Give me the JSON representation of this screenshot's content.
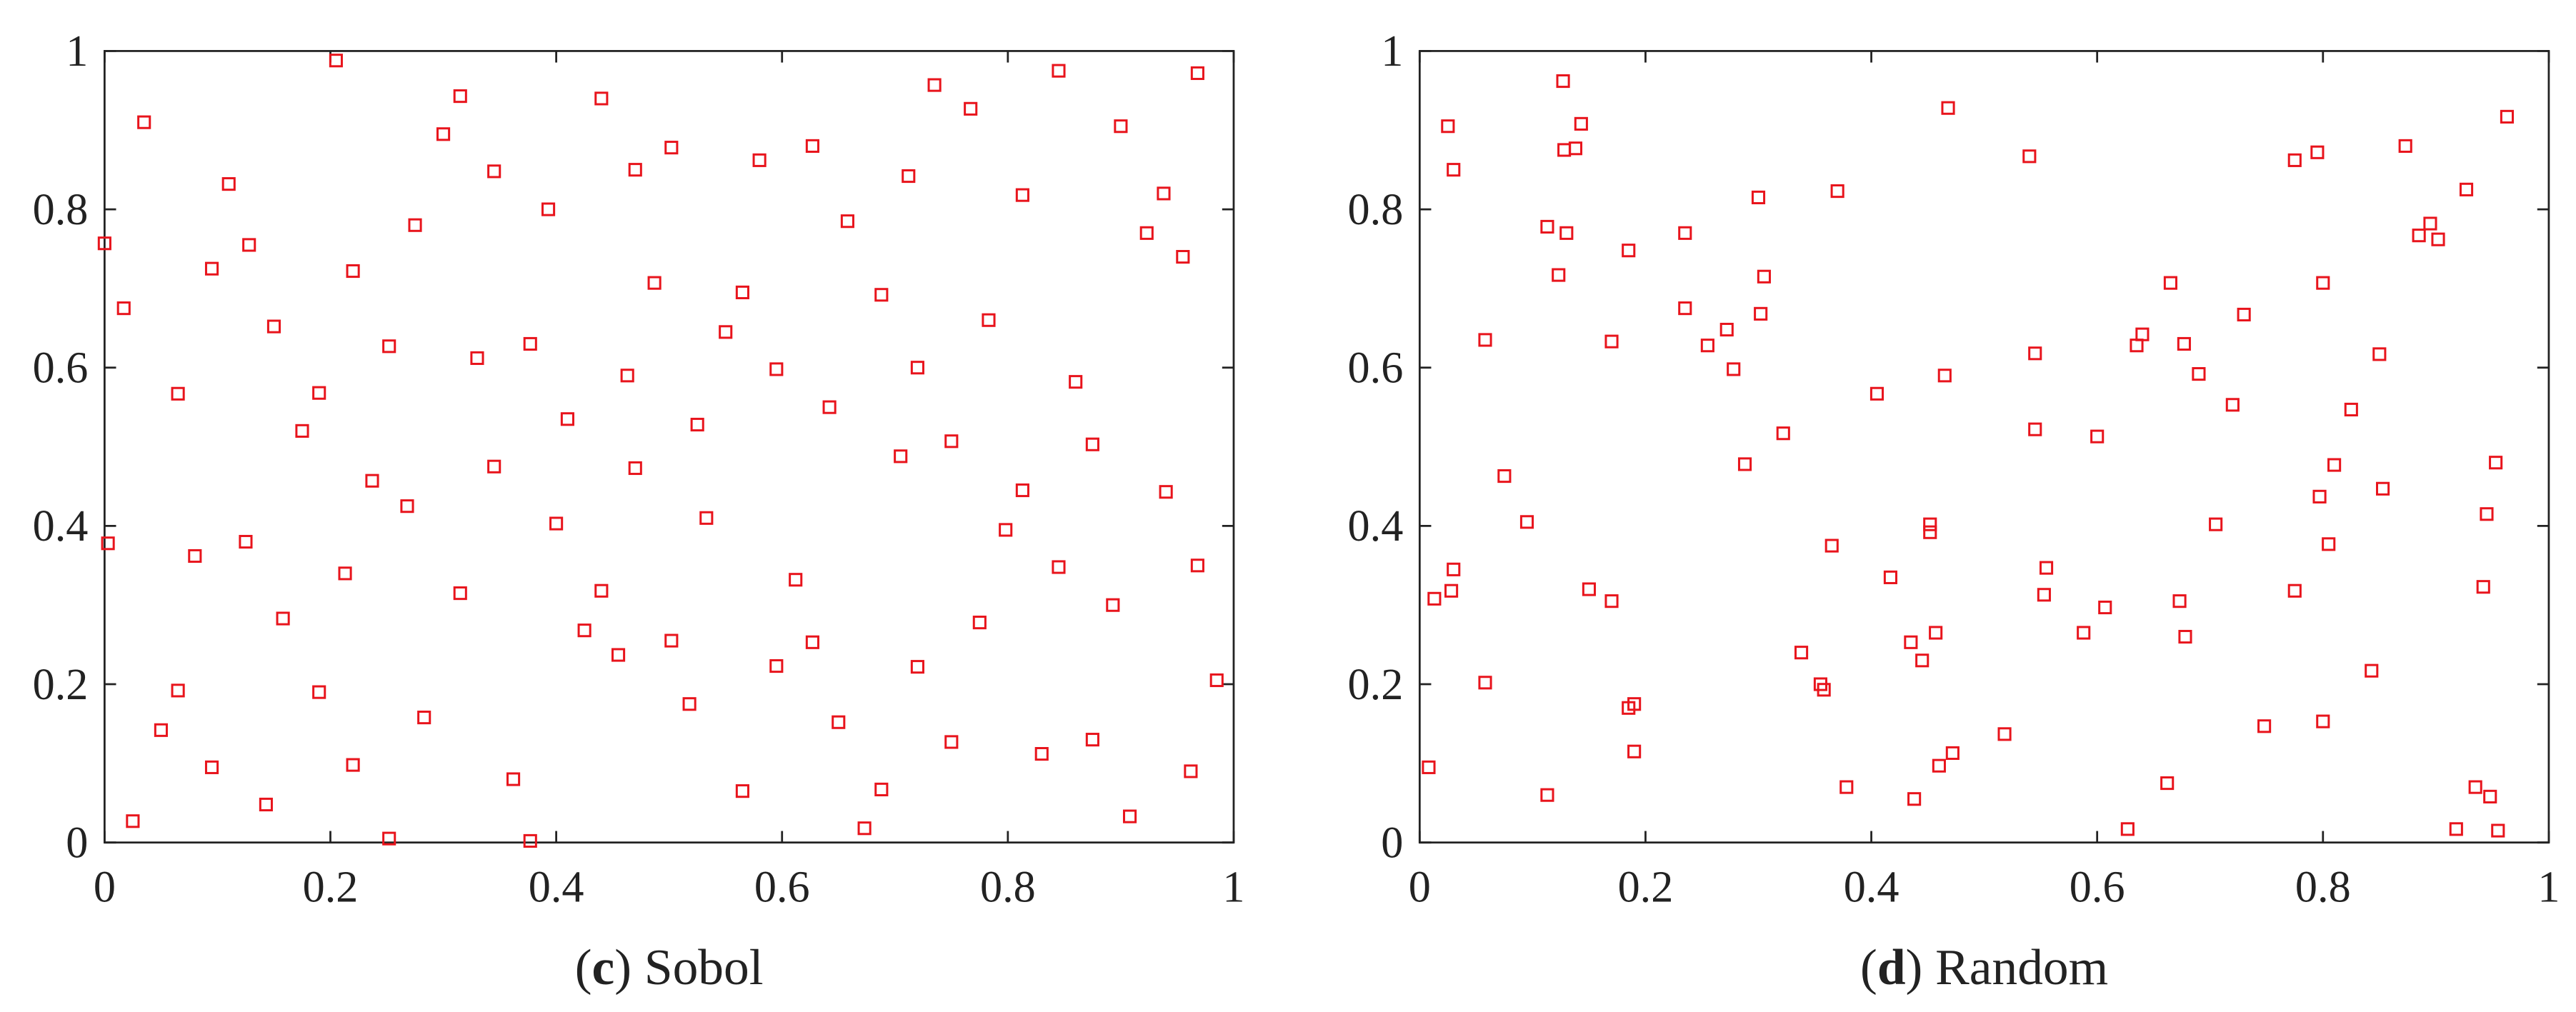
{
  "chart_data": [
    {
      "type": "scatter",
      "caption": [
        "(",
        "c",
        ") Sobol"
      ],
      "color": "#e8141c",
      "xlim": [
        0,
        1
      ],
      "ylim": [
        0,
        1
      ],
      "xticks": [
        0,
        0.2,
        0.4,
        0.6,
        0.8,
        1
      ],
      "yticks": [
        0,
        0.2,
        0.4,
        0.6,
        0.8,
        1
      ],
      "x": [
        0.0,
        0.003,
        0.017,
        0.025,
        0.035,
        0.05,
        0.065,
        0.065,
        0.08,
        0.095,
        0.095,
        0.11,
        0.125,
        0.128,
        0.143,
        0.15,
        0.158,
        0.175,
        0.19,
        0.19,
        0.205,
        0.213,
        0.22,
        0.22,
        0.237,
        0.252,
        0.252,
        0.268,
        0.275,
        0.283,
        0.3,
        0.315,
        0.315,
        0.33,
        0.345,
        0.345,
        0.362,
        0.377,
        0.377,
        0.393,
        0.4,
        0.41,
        0.425,
        0.44,
        0.44,
        0.455,
        0.463,
        0.47,
        0.47,
        0.487,
        0.502,
        0.502,
        0.518,
        0.525,
        0.533,
        0.55,
        0.565,
        0.565,
        0.58,
        0.595,
        0.595,
        0.612,
        0.627,
        0.627,
        0.642,
        0.65,
        0.658,
        0.673,
        0.688,
        0.688,
        0.705,
        0.712,
        0.72,
        0.72,
        0.735,
        0.75,
        0.75,
        0.767,
        0.775,
        0.783,
        0.798,
        0.813,
        0.813,
        0.83,
        0.845,
        0.845,
        0.86,
        0.875,
        0.875,
        0.893,
        0.9,
        0.908,
        0.923,
        0.938,
        0.94,
        0.955,
        0.962,
        0.968,
        0.968,
        0.985
      ],
      "values": [
        0.757,
        0.378,
        0.675,
        0.027,
        0.91,
        0.142,
        0.567,
        0.192,
        0.362,
        0.725,
        0.095,
        0.832,
        0.38,
        0.755,
        0.048,
        0.652,
        0.283,
        0.52,
        0.568,
        0.19,
        0.988,
        0.34,
        0.722,
        0.098,
        0.457,
        0.627,
        0.005,
        0.425,
        0.78,
        0.158,
        0.895,
        0.943,
        0.315,
        0.612,
        0.848,
        0.475,
        0.08,
        0.63,
        0.002,
        0.8,
        0.403,
        0.535,
        0.268,
        0.94,
        0.318,
        0.237,
        0.59,
        0.85,
        0.473,
        0.707,
        0.878,
        0.255,
        0.175,
        0.528,
        0.41,
        0.645,
        0.695,
        0.065,
        0.862,
        0.598,
        0.223,
        0.332,
        0.88,
        0.253,
        0.55,
        0.152,
        0.785,
        0.018,
        0.692,
        0.067,
        0.488,
        0.842,
        0.6,
        0.222,
        0.957,
        0.507,
        0.127,
        0.927,
        0.278,
        0.66,
        0.395,
        0.818,
        0.445,
        0.112,
        0.975,
        0.348,
        0.582,
        0.503,
        0.13,
        0.3,
        0.905,
        0.033,
        0.77,
        0.82,
        0.443,
        0.74,
        0.09,
        0.972,
        0.35,
        0.205
      ]
    },
    {
      "type": "scatter",
      "caption": [
        "(",
        "d",
        ") Random"
      ],
      "color": "#e8141c",
      "xlim": [
        0,
        1
      ],
      "ylim": [
        0,
        1
      ],
      "xticks": [
        0,
        0.2,
        0.4,
        0.6,
        0.8,
        1
      ],
      "yticks": [
        0,
        0.2,
        0.4,
        0.6,
        0.8,
        1
      ],
      "x": [
        0.008,
        0.013,
        0.025,
        0.028,
        0.03,
        0.03,
        0.058,
        0.058,
        0.075,
        0.095,
        0.113,
        0.113,
        0.123,
        0.127,
        0.128,
        0.13,
        0.138,
        0.143,
        0.15,
        0.17,
        0.17,
        0.185,
        0.185,
        0.19,
        0.19,
        0.235,
        0.235,
        0.255,
        0.272,
        0.278,
        0.288,
        0.3,
        0.302,
        0.305,
        0.322,
        0.365,
        0.37,
        0.338,
        0.355,
        0.358,
        0.378,
        0.405,
        0.417,
        0.435,
        0.438,
        0.445,
        0.452,
        0.452,
        0.457,
        0.46,
        0.465,
        0.468,
        0.472,
        0.518,
        0.54,
        0.545,
        0.545,
        0.553,
        0.555,
        0.588,
        0.6,
        0.607,
        0.627,
        0.635,
        0.64,
        0.662,
        0.665,
        0.673,
        0.677,
        0.678,
        0.69,
        0.705,
        0.72,
        0.73,
        0.748,
        0.775,
        0.775,
        0.795,
        0.797,
        0.8,
        0.8,
        0.805,
        0.81,
        0.825,
        0.843,
        0.85,
        0.853,
        0.873,
        0.885,
        0.895,
        0.902,
        0.918,
        0.927,
        0.935,
        0.942,
        0.945,
        0.948,
        0.953,
        0.955,
        0.963
      ],
      "values": [
        0.095,
        0.308,
        0.905,
        0.318,
        0.85,
        0.345,
        0.635,
        0.202,
        0.463,
        0.405,
        0.778,
        0.06,
        0.717,
        0.962,
        0.875,
        0.77,
        0.877,
        0.908,
        0.32,
        0.633,
        0.305,
        0.748,
        0.17,
        0.175,
        0.115,
        0.77,
        0.675,
        0.628,
        0.648,
        0.598,
        0.478,
        0.815,
        0.668,
        0.715,
        0.517,
        0.375,
        0.823,
        0.24,
        0.2,
        0.193,
        0.07,
        0.567,
        0.335,
        0.253,
        0.055,
        0.23,
        0.402,
        0.392,
        0.265,
        0.097,
        0.59,
        0.928,
        0.113,
        0.137,
        0.867,
        0.618,
        0.522,
        0.313,
        0.347,
        0.265,
        0.513,
        0.297,
        0.017,
        0.628,
        0.642,
        0.075,
        0.707,
        0.305,
        0.63,
        0.26,
        0.592,
        0.402,
        0.553,
        0.667,
        0.147,
        0.862,
        0.318,
        0.872,
        0.437,
        0.707,
        0.153,
        0.377,
        0.477,
        0.547,
        0.217,
        0.617,
        0.447,
        0.88,
        0.767,
        0.782,
        0.762,
        0.017,
        0.825,
        0.07,
        0.323,
        0.415,
        0.058,
        0.48,
        0.015,
        0.917
      ]
    }
  ]
}
